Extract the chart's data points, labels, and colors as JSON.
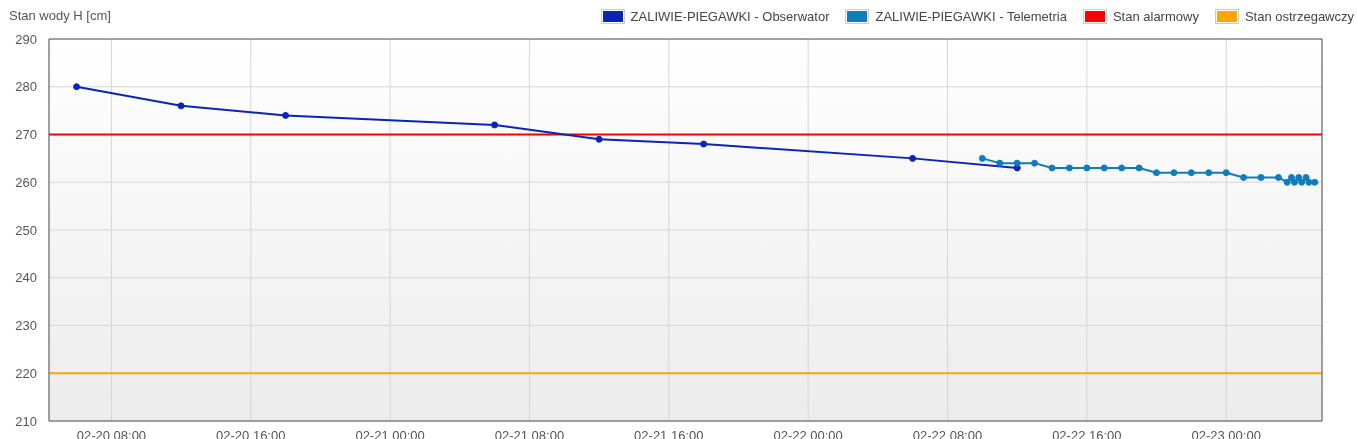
{
  "chart_data": {
    "type": "line",
    "ylabel": "Stan wody H [cm]",
    "xlim": [
      "--02-20T04:25",
      "--02-23T05:30"
    ],
    "xticks": [
      {
        "value": "--02-20T08:00",
        "label": "02-20 08:00"
      },
      {
        "value": "--02-20T16:00",
        "label": "02-20 16:00"
      },
      {
        "value": "--02-21T00:00",
        "label": "02-21 00:00"
      },
      {
        "value": "--02-21T08:00",
        "label": "02-21 08:00"
      },
      {
        "value": "--02-21T16:00",
        "label": "02-21 16:00"
      },
      {
        "value": "--02-22T00:00",
        "label": "02-22 00:00"
      },
      {
        "value": "--02-22T08:00",
        "label": "02-22 08:00"
      },
      {
        "value": "--02-22T16:00",
        "label": "02-22 16:00"
      },
      {
        "value": "--02-23T00:00",
        "label": "02-23 00:00"
      }
    ],
    "ylim": [
      210,
      290
    ],
    "yticks": [
      210,
      220,
      230,
      240,
      250,
      260,
      270,
      280,
      290
    ],
    "series": [
      {
        "name": "ZALIWIE-PIEGAWKI - Obserwator",
        "color": "#0b24b4",
        "x": [
          "--02-20T06:00",
          "--02-20T12:00",
          "--02-20T18:00",
          "--02-21T06:00",
          "--02-21T12:00",
          "--02-21T18:00",
          "--02-22T06:00",
          "--02-22T12:00"
        ],
        "values": [
          280,
          276,
          274,
          272,
          269,
          268,
          265,
          263
        ]
      },
      {
        "name": "ZALIWIE-PIEGAWKI - Telemetria",
        "color": "#0f7dbb",
        "x": [
          "--02-22T10:00",
          "--02-22T11:00",
          "--02-22T12:00",
          "--02-22T13:00",
          "--02-22T14:00",
          "--02-22T15:00",
          "--02-22T16:00",
          "--02-22T17:00",
          "--02-22T18:00",
          "--02-22T19:00",
          "--02-22T20:00",
          "--02-22T21:00",
          "--02-22T22:00",
          "--02-22T23:00",
          "--02-23T00:00",
          "--02-23T01:00",
          "--02-23T02:00",
          "--02-23T03:00",
          "--02-23T03:30",
          "--02-23T03:45",
          "--02-23T03:55",
          "--02-23T04:10",
          "--02-23T04:20",
          "--02-23T04:35",
          "--02-23T04:45",
          "--02-23T05:05"
        ],
        "values": [
          265,
          264,
          264,
          264,
          263,
          263,
          263,
          263,
          263,
          263,
          262,
          262,
          262,
          262,
          262,
          261,
          261,
          261,
          260,
          261,
          260,
          261,
          260,
          261,
          260,
          260
        ]
      }
    ],
    "ref_lines": [
      {
        "axis": "y",
        "value": 270,
        "label": "Stan alarmowy",
        "color": "#ff0000"
      },
      {
        "axis": "y",
        "value": 220,
        "label": "Stan ostrzegawczy",
        "color": "#ffa500"
      }
    ],
    "grid": true,
    "legend": "top right",
    "marker": "circle",
    "line_style": "solid"
  }
}
